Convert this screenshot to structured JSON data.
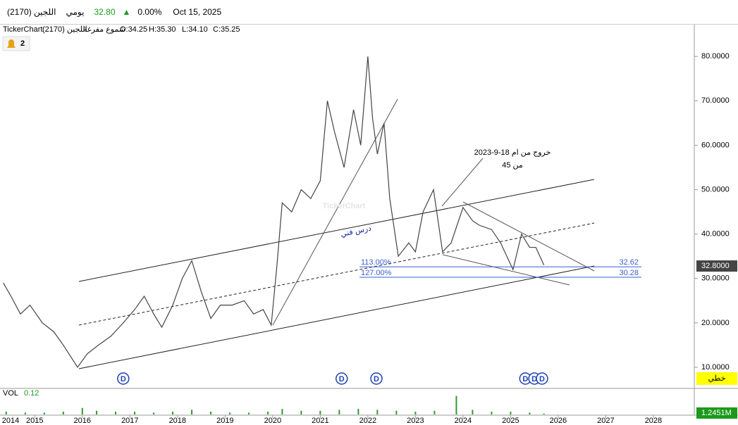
{
  "header": {
    "symbol": "اللجين (2170)",
    "period": "يومي",
    "price": "32.80",
    "change": "0.00%",
    "date": "Oct 15, 2025"
  },
  "info": {
    "source": "TickerChart",
    "symbol": "اللجين (2170)",
    "style": "شموع مفرغة",
    "open": "O:34.25",
    "high": "H:35.30",
    "low": "L:34.10",
    "close": "C:35.25"
  },
  "alerts": "2",
  "chart_data": [
    {
      "type": "line",
      "color": "#444444",
      "x": [
        2014.34,
        2014.5,
        2014.7,
        2014.9,
        2015.16,
        2015.4,
        2015.6,
        2015.9,
        2016.1,
        2016.34,
        2016.6,
        2016.86,
        2017.1,
        2017.3,
        2017.5,
        2017.67,
        2017.9,
        2018.1,
        2018.3,
        2018.5,
        2018.7,
        2018.9,
        2019.15,
        2019.4,
        2019.6,
        2019.8,
        2019.97,
        2020.09,
        2020.2,
        2020.4,
        2020.6,
        2020.8,
        2021.0,
        2021.15,
        2021.3,
        2021.5,
        2021.7,
        2021.85,
        2022.0,
        2022.1,
        2022.2,
        2022.34,
        2022.46,
        2022.64,
        2022.86,
        2023.0,
        2023.16,
        2023.38,
        2023.57,
        2023.75,
        2024.0,
        2024.2,
        2024.34,
        2024.6,
        2024.79,
        2025.05,
        2025.23,
        2025.4,
        2025.53,
        2025.7
      ],
      "values": [
        29,
        26,
        22,
        24,
        20,
        18,
        15,
        10,
        13,
        15,
        17,
        20,
        23,
        26,
        22,
        19,
        24,
        30,
        34,
        27,
        21,
        24,
        24,
        25,
        22,
        23,
        19.5,
        33,
        47,
        45,
        50,
        48,
        52,
        70,
        63,
        55,
        68,
        60,
        80,
        66,
        58,
        65,
        48,
        35,
        38,
        36,
        45,
        50,
        36,
        38,
        46,
        43,
        42,
        41,
        38,
        32,
        40,
        37,
        37,
        33
      ],
      "xlim": [
        2014.27,
        2028.86
      ],
      "ylim": [
        5.4,
        87
      ],
      "yticks": [
        {
          "value": 10,
          "label": "10.0000"
        },
        {
          "value": 20,
          "label": "20.0000"
        },
        {
          "value": 30,
          "label": "30.0000"
        },
        {
          "value": 40,
          "label": "40.0000"
        },
        {
          "value": 50,
          "label": "50.0000"
        },
        {
          "value": 60,
          "label": "60.0000"
        },
        {
          "value": 70,
          "label": "70.0000"
        },
        {
          "value": 80,
          "label": "80.0000"
        }
      ],
      "xticks": [
        2014,
        2015,
        2016,
        2017,
        2018,
        2019,
        2020,
        2021,
        2022,
        2023,
        2024,
        2025,
        2026,
        2027,
        2028
      ],
      "last_price": {
        "value": 32.8,
        "label": "32.8000"
      },
      "levels": [
        {
          "value": 32.62,
          "label": "113.00%"
        },
        {
          "value": 30.28,
          "label": "127.00%"
        }
      ],
      "annotations": [
        "خروج من ام 18-9-2023",
        "من 45",
        "درس فني"
      ],
      "watermark": "TickerChart",
      "scale_mode": "خطي",
      "dividends": {
        "label": "D",
        "x": [
          2016.86,
          2021.45,
          2022.18,
          2025.31,
          2025.5,
          2025.66
        ]
      }
    },
    {
      "type": "bar",
      "title": "VOL",
      "current": "0.12",
      "last_label": "1.2451M",
      "color": "#2e9b2e",
      "ylim": [
        0,
        25
      ],
      "x": [
        2014.4,
        2014.8,
        2015.2,
        2015.6,
        2016.0,
        2016.3,
        2016.7,
        2017.1,
        2017.5,
        2017.9,
        2018.3,
        2018.7,
        2019.1,
        2019.5,
        2019.9,
        2020.2,
        2020.6,
        2021.0,
        2021.4,
        2021.8,
        2022.2,
        2022.6,
        2023.0,
        2023.4,
        2023.86,
        2024.2,
        2024.6,
        2025.0,
        2025.4,
        2025.7
      ],
      "values": [
        3,
        2,
        2,
        3,
        7,
        4,
        3,
        3,
        2,
        3,
        5,
        3,
        2,
        2,
        3,
        6,
        4,
        4,
        5,
        6,
        5,
        4,
        3,
        4,
        20,
        5,
        3,
        3,
        2,
        1
      ]
    }
  ]
}
